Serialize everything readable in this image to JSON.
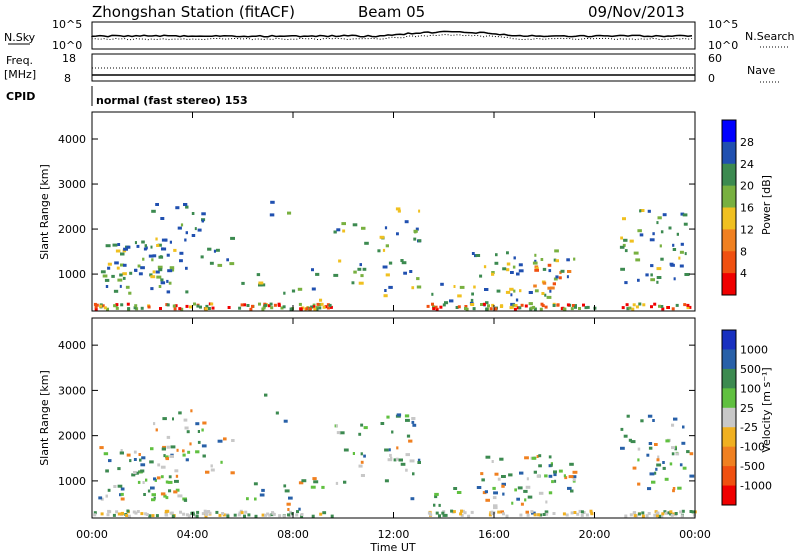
{
  "header": {
    "title": "Zhongshan Station (fitACF)",
    "beam": "Beam 05",
    "date": "09/Nov/2013"
  },
  "panels": {
    "nsky": {
      "label": "N.Sky",
      "tick_hi": "10^5",
      "tick_lo": "10^0",
      "right_label": "N.Search",
      "right_hi": "10^5",
      "right_lo": "10^0"
    },
    "freq": {
      "label_top": "Freq.",
      "label_unit": "[MHz]",
      "tick_hi": "18",
      "tick_lo": "8",
      "right_label": "Nave",
      "right_hi": "60",
      "right_lo": "0"
    },
    "cpid": {
      "label": "CPID",
      "text": "normal (fast stereo) 153"
    }
  },
  "chart_data": [
    {
      "type": "heatmap",
      "name_label": "power-panel",
      "ylabel": "Slant Range [km]",
      "xlabel": "Time UT",
      "xlim_hours": [
        0,
        24
      ],
      "ylim": [
        180,
        4600
      ],
      "yticks": [
        "1000",
        "2000",
        "3000",
        "4000"
      ],
      "xticks": [
        "00:00",
        "04:00",
        "08:00",
        "12:00",
        "16:00",
        "20:00",
        "00:00"
      ],
      "colorbar": {
        "label": "Power [dB]",
        "ticks": [
          "4",
          "8",
          "12",
          "16",
          "20",
          "24",
          "28"
        ],
        "colors": [
          "#0000ff",
          "#2050b0",
          "#3c8a50",
          "#78b040",
          "#f0c020",
          "#f08020",
          "#f05010",
          "#f00000"
        ]
      }
    },
    {
      "type": "heatmap",
      "name_label": "velocity-panel",
      "ylabel": "Slant Range [km]",
      "xlabel": "Time UT",
      "xlim_hours": [
        0,
        24
      ],
      "ylim": [
        180,
        4600
      ],
      "yticks": [
        "1000",
        "2000",
        "3000",
        "4000"
      ],
      "xticks": [
        "00:00",
        "04:00",
        "08:00",
        "12:00",
        "16:00",
        "20:00",
        "00:00"
      ],
      "colorbar": {
        "label": "Velocity [m s⁻¹]",
        "ticks": [
          "1000",
          "500",
          "100",
          "25",
          "-25",
          "-100",
          "-500",
          "-1000"
        ],
        "colors": [
          "#1830c0",
          "#2860a8",
          "#3c8a50",
          "#60c040",
          "#c8c8c8",
          "#f0b020",
          "#f08020",
          "#f05010",
          "#f00000"
        ]
      }
    }
  ]
}
